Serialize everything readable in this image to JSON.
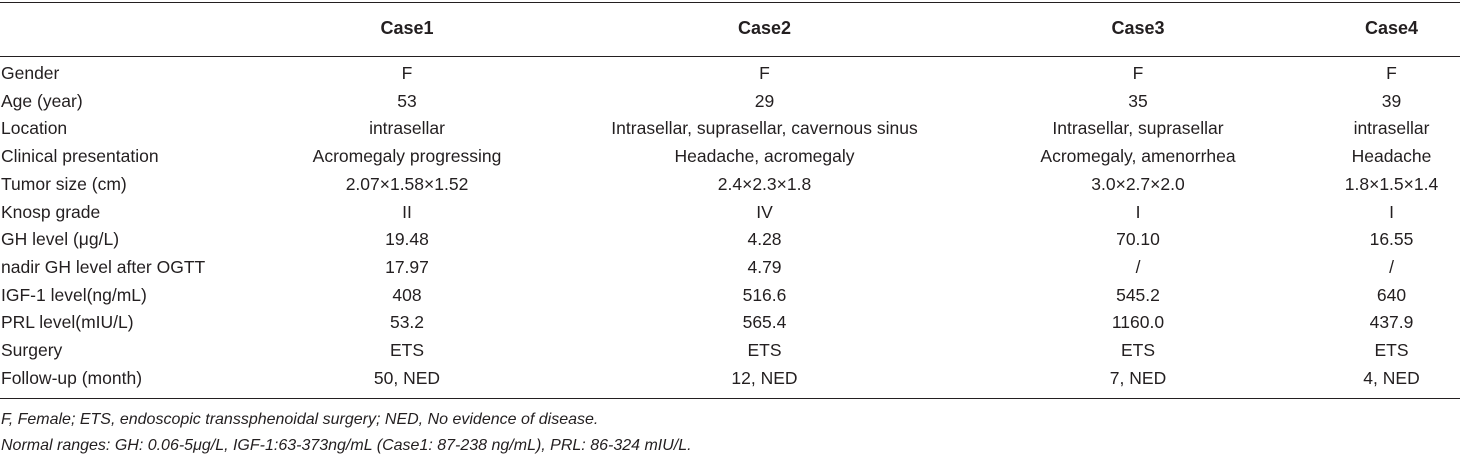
{
  "table": {
    "columns": [
      "",
      "Case1",
      "Case2",
      "Case3",
      "Case4"
    ],
    "rows": [
      [
        "Gender",
        "F",
        "F",
        "F",
        "F"
      ],
      [
        "Age (year)",
        "53",
        "29",
        "35",
        "39"
      ],
      [
        "Location",
        "intrasellar",
        "Intrasellar, suprasellar, cavernous sinus",
        "Intrasellar, suprasellar",
        "intrasellar"
      ],
      [
        "Clinical presentation",
        "Acromegaly progressing",
        "Headache, acromegaly",
        "Acromegaly, amenorrhea",
        "Headache"
      ],
      [
        "Tumor size (cm)",
        "2.07×1.58×1.52",
        "2.4×2.3×1.8",
        "3.0×2.7×2.0",
        "1.8×1.5×1.4"
      ],
      [
        "Knosp grade",
        "II",
        "IV",
        "I",
        "I"
      ],
      [
        "GH level (μg/L)",
        "19.48",
        "4.28",
        "70.10",
        "16.55"
      ],
      [
        "nadir GH level after OGTT",
        "17.97",
        "4.79",
        "/",
        "/"
      ],
      [
        "IGF-1 level(ng/mL)",
        "408",
        "516.6",
        "545.2",
        "640"
      ],
      [
        "PRL level(mIU/L)",
        "53.2",
        "565.4",
        "1160.0",
        "437.9"
      ],
      [
        "Surgery",
        "ETS",
        "ETS",
        "ETS",
        "ETS"
      ],
      [
        "Follow-up (month)",
        "50, NED",
        "12, NED",
        "7, NED",
        "4, NED"
      ]
    ]
  },
  "footnotes": [
    "F, Female; ETS, endoscopic transsphenoidal surgery; NED, No evidence of disease.",
    "Normal ranges: GH: 0.06-5μg/L, IGF-1:63-373ng/mL (Case1: 87-238 ng/mL), PRL: 86-324 mIU/L."
  ]
}
